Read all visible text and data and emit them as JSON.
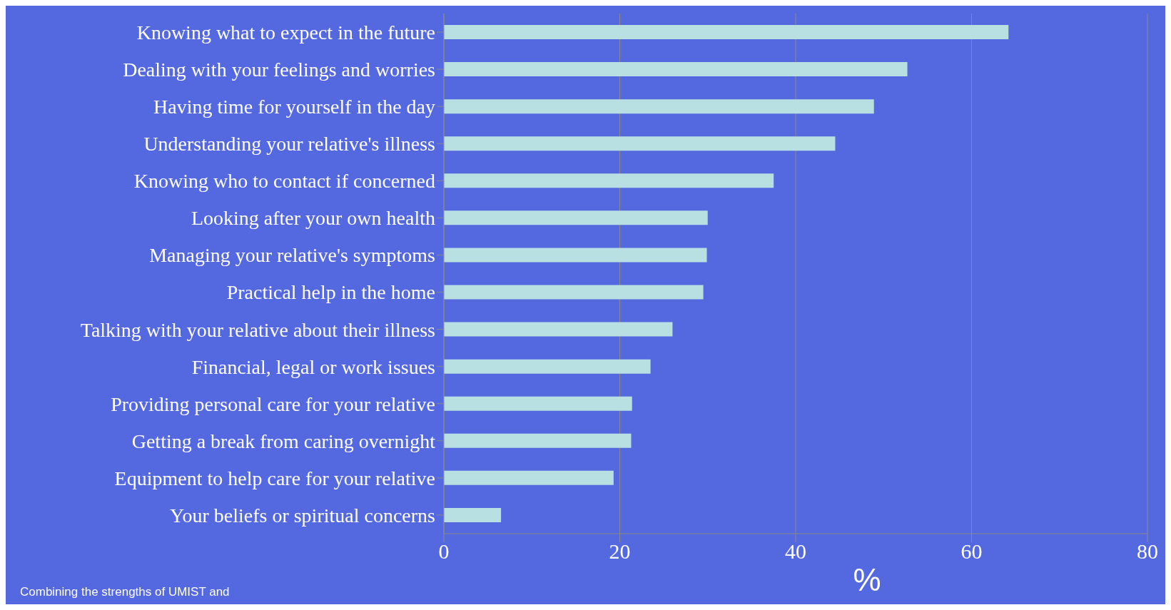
{
  "chart_data": {
    "type": "bar",
    "orientation": "horizontal",
    "xlabel": "%",
    "categories": [
      "Knowing what to expect in the future",
      "Dealing with your feelings and worries",
      "Having time for yourself in the day",
      "Understanding your relative's illness",
      "Knowing who to contact if concerned",
      "Looking after your own health",
      "Managing your relative's symptoms",
      "Practical help in the home",
      "Talking with your relative about their illness",
      "Financial, legal or work issues",
      "Providing personal care for your relative",
      "Getting a break from caring overnight",
      "Equipment to help care for your relative",
      "Your beliefs or spiritual concerns"
    ],
    "values": [
      64.2,
      52.7,
      48.9,
      44.5,
      37.5,
      30.0,
      29.9,
      29.5,
      26.0,
      23.5,
      21.4,
      21.3,
      19.3,
      6.5
    ],
    "color": "#b8e0e2",
    "xlim": [
      0,
      80
    ],
    "xticks": [
      0,
      20,
      40,
      60,
      80
    ],
    "grid": "x",
    "annotations": [
      "Combining the strengths of UMIST and"
    ]
  }
}
